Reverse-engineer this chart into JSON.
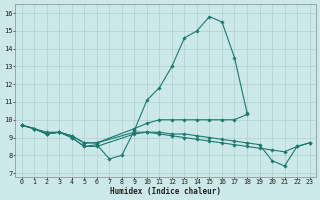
{
  "title": "",
  "xlabel": "Humidex (Indice chaleur)",
  "ylabel": "",
  "xlim": [
    -0.5,
    23.5
  ],
  "ylim": [
    6.8,
    16.5
  ],
  "yticks": [
    7,
    8,
    9,
    10,
    11,
    12,
    13,
    14,
    15,
    16
  ],
  "xticks": [
    0,
    1,
    2,
    3,
    4,
    5,
    6,
    7,
    8,
    9,
    10,
    11,
    12,
    13,
    14,
    15,
    16,
    17,
    18,
    19,
    20,
    21,
    22,
    23
  ],
  "bg_color": "#cce8e8",
  "line_color": "#1a7a6e",
  "grid_color": "#b0cfcf",
  "lines": [
    {
      "x": [
        0,
        1,
        2,
        3,
        4,
        5,
        6,
        7,
        8,
        9,
        10,
        11,
        12,
        13,
        14,
        15,
        16,
        17,
        18
      ],
      "y": [
        9.7,
        9.5,
        9.2,
        9.3,
        9.0,
        8.5,
        8.6,
        7.8,
        8.0,
        9.4,
        11.1,
        11.8,
        13.0,
        14.6,
        15.0,
        15.8,
        15.5,
        13.5,
        10.4
      ]
    },
    {
      "x": [
        0,
        1,
        2,
        3,
        4,
        5,
        6,
        9,
        10,
        11,
        12,
        13,
        14,
        15,
        16,
        17,
        18
      ],
      "y": [
        9.7,
        9.5,
        9.2,
        9.3,
        9.1,
        8.7,
        8.7,
        9.5,
        9.8,
        10.0,
        10.0,
        10.0,
        10.0,
        10.0,
        10.0,
        10.0,
        10.3
      ]
    },
    {
      "x": [
        0,
        1,
        2,
        3,
        4,
        5,
        6,
        9,
        10,
        11,
        12,
        13,
        14,
        15,
        16,
        17,
        18,
        19,
        20,
        21,
        22,
        23
      ],
      "y": [
        9.7,
        9.5,
        9.2,
        9.3,
        9.0,
        8.5,
        8.5,
        9.2,
        9.3,
        9.3,
        9.2,
        9.2,
        9.1,
        9.0,
        8.9,
        8.8,
        8.7,
        8.6,
        7.7,
        7.4,
        8.5,
        8.7
      ]
    },
    {
      "x": [
        0,
        1,
        2,
        3,
        4,
        5,
        6,
        9,
        10,
        11,
        12,
        13,
        14,
        15,
        16,
        17,
        18,
        19,
        20,
        21,
        22,
        23
      ],
      "y": [
        9.7,
        9.5,
        9.3,
        9.3,
        9.1,
        8.7,
        8.7,
        9.3,
        9.3,
        9.2,
        9.1,
        9.0,
        8.9,
        8.8,
        8.7,
        8.6,
        8.5,
        8.4,
        8.3,
        8.2,
        8.5,
        8.7
      ]
    }
  ]
}
